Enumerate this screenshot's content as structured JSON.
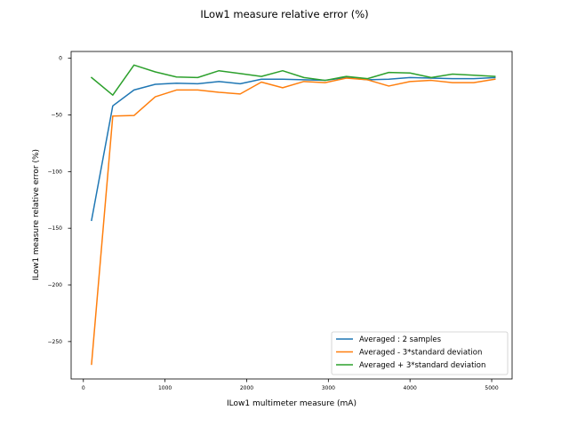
{
  "chart_data": {
    "type": "line",
    "title": "ILow1 measure relative error (%)",
    "xlabel": "ILow1 multimeter measure (mA)",
    "ylabel": "ILow1 measure relative error (%)",
    "xlim": [
      -150,
      5250
    ],
    "ylim": [
      -283,
      6
    ],
    "xticks": [
      0,
      1000,
      2000,
      3000,
      4000,
      5000
    ],
    "xtick_labels": [
      "0",
      "1000",
      "2000",
      "3000",
      "4000",
      "5000"
    ],
    "yticks": [
      0,
      -50,
      -100,
      -150,
      -200,
      -250
    ],
    "ytick_labels": [
      "0",
      "−50",
      "−100",
      "−150",
      "−200",
      "−250"
    ],
    "grid": false,
    "legend_position": "lower-right",
    "x": [
      100,
      360,
      620,
      880,
      1140,
      1400,
      1660,
      1920,
      2180,
      2440,
      2700,
      2960,
      3220,
      3480,
      3740,
      4000,
      4260,
      4520,
      4780,
      5040
    ],
    "series": [
      {
        "name": "Averaged : 2 samples",
        "color": "#1f77b4",
        "values": [
          -143,
          -42,
          -28,
          -23,
          -22,
          -22.5,
          -20.5,
          -22.5,
          -18.5,
          -18.5,
          -19,
          -19.5,
          -17,
          -19,
          -18.5,
          -17,
          -17.5,
          -18,
          -18,
          -17
        ]
      },
      {
        "name": "Averaged - 3*standard deviation",
        "color": "#ff7f0e",
        "values": [
          -270,
          -51,
          -50.5,
          -34,
          -28,
          -28,
          -30,
          -31.5,
          -21,
          -26,
          -20.5,
          -21.5,
          -17.5,
          -19,
          -24.5,
          -20.5,
          -19.5,
          -21.5,
          -21.5,
          -18.5
        ]
      },
      {
        "name": "Averaged + 3*standard deviation",
        "color": "#2ca02c",
        "values": [
          -17,
          -32.5,
          -6,
          -12,
          -16.5,
          -17,
          -11,
          -13.5,
          -16,
          -11,
          -17,
          -19.5,
          -16,
          -18,
          -12.5,
          -13,
          -17,
          -14,
          -15,
          -16
        ]
      }
    ]
  }
}
